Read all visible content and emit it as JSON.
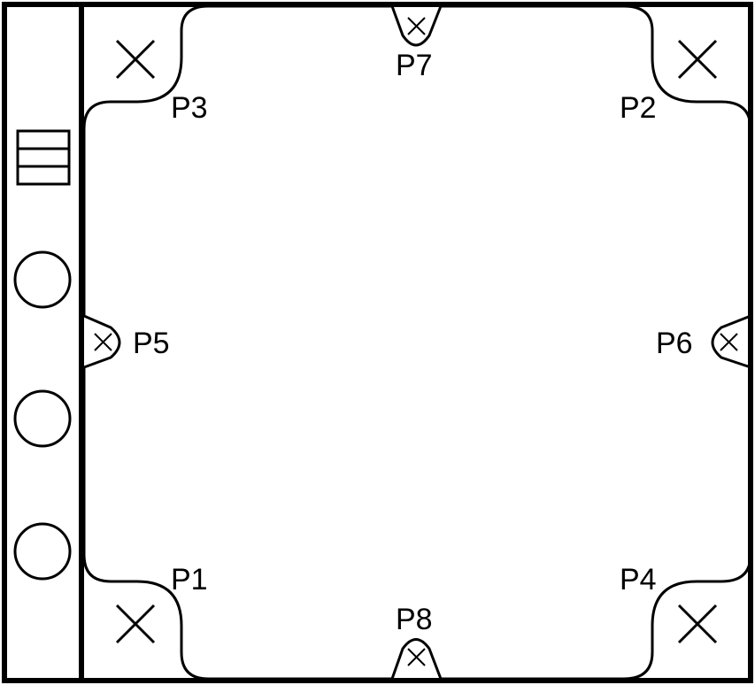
{
  "diagram": {
    "stroke_color": "#000000",
    "background_color": "#ffffff",
    "points": {
      "p1": "P1",
      "p2": "P2",
      "p3": "P3",
      "p4": "P4",
      "p5": "P5",
      "p6": "P6",
      "p7": "P7",
      "p8": "P8"
    }
  }
}
